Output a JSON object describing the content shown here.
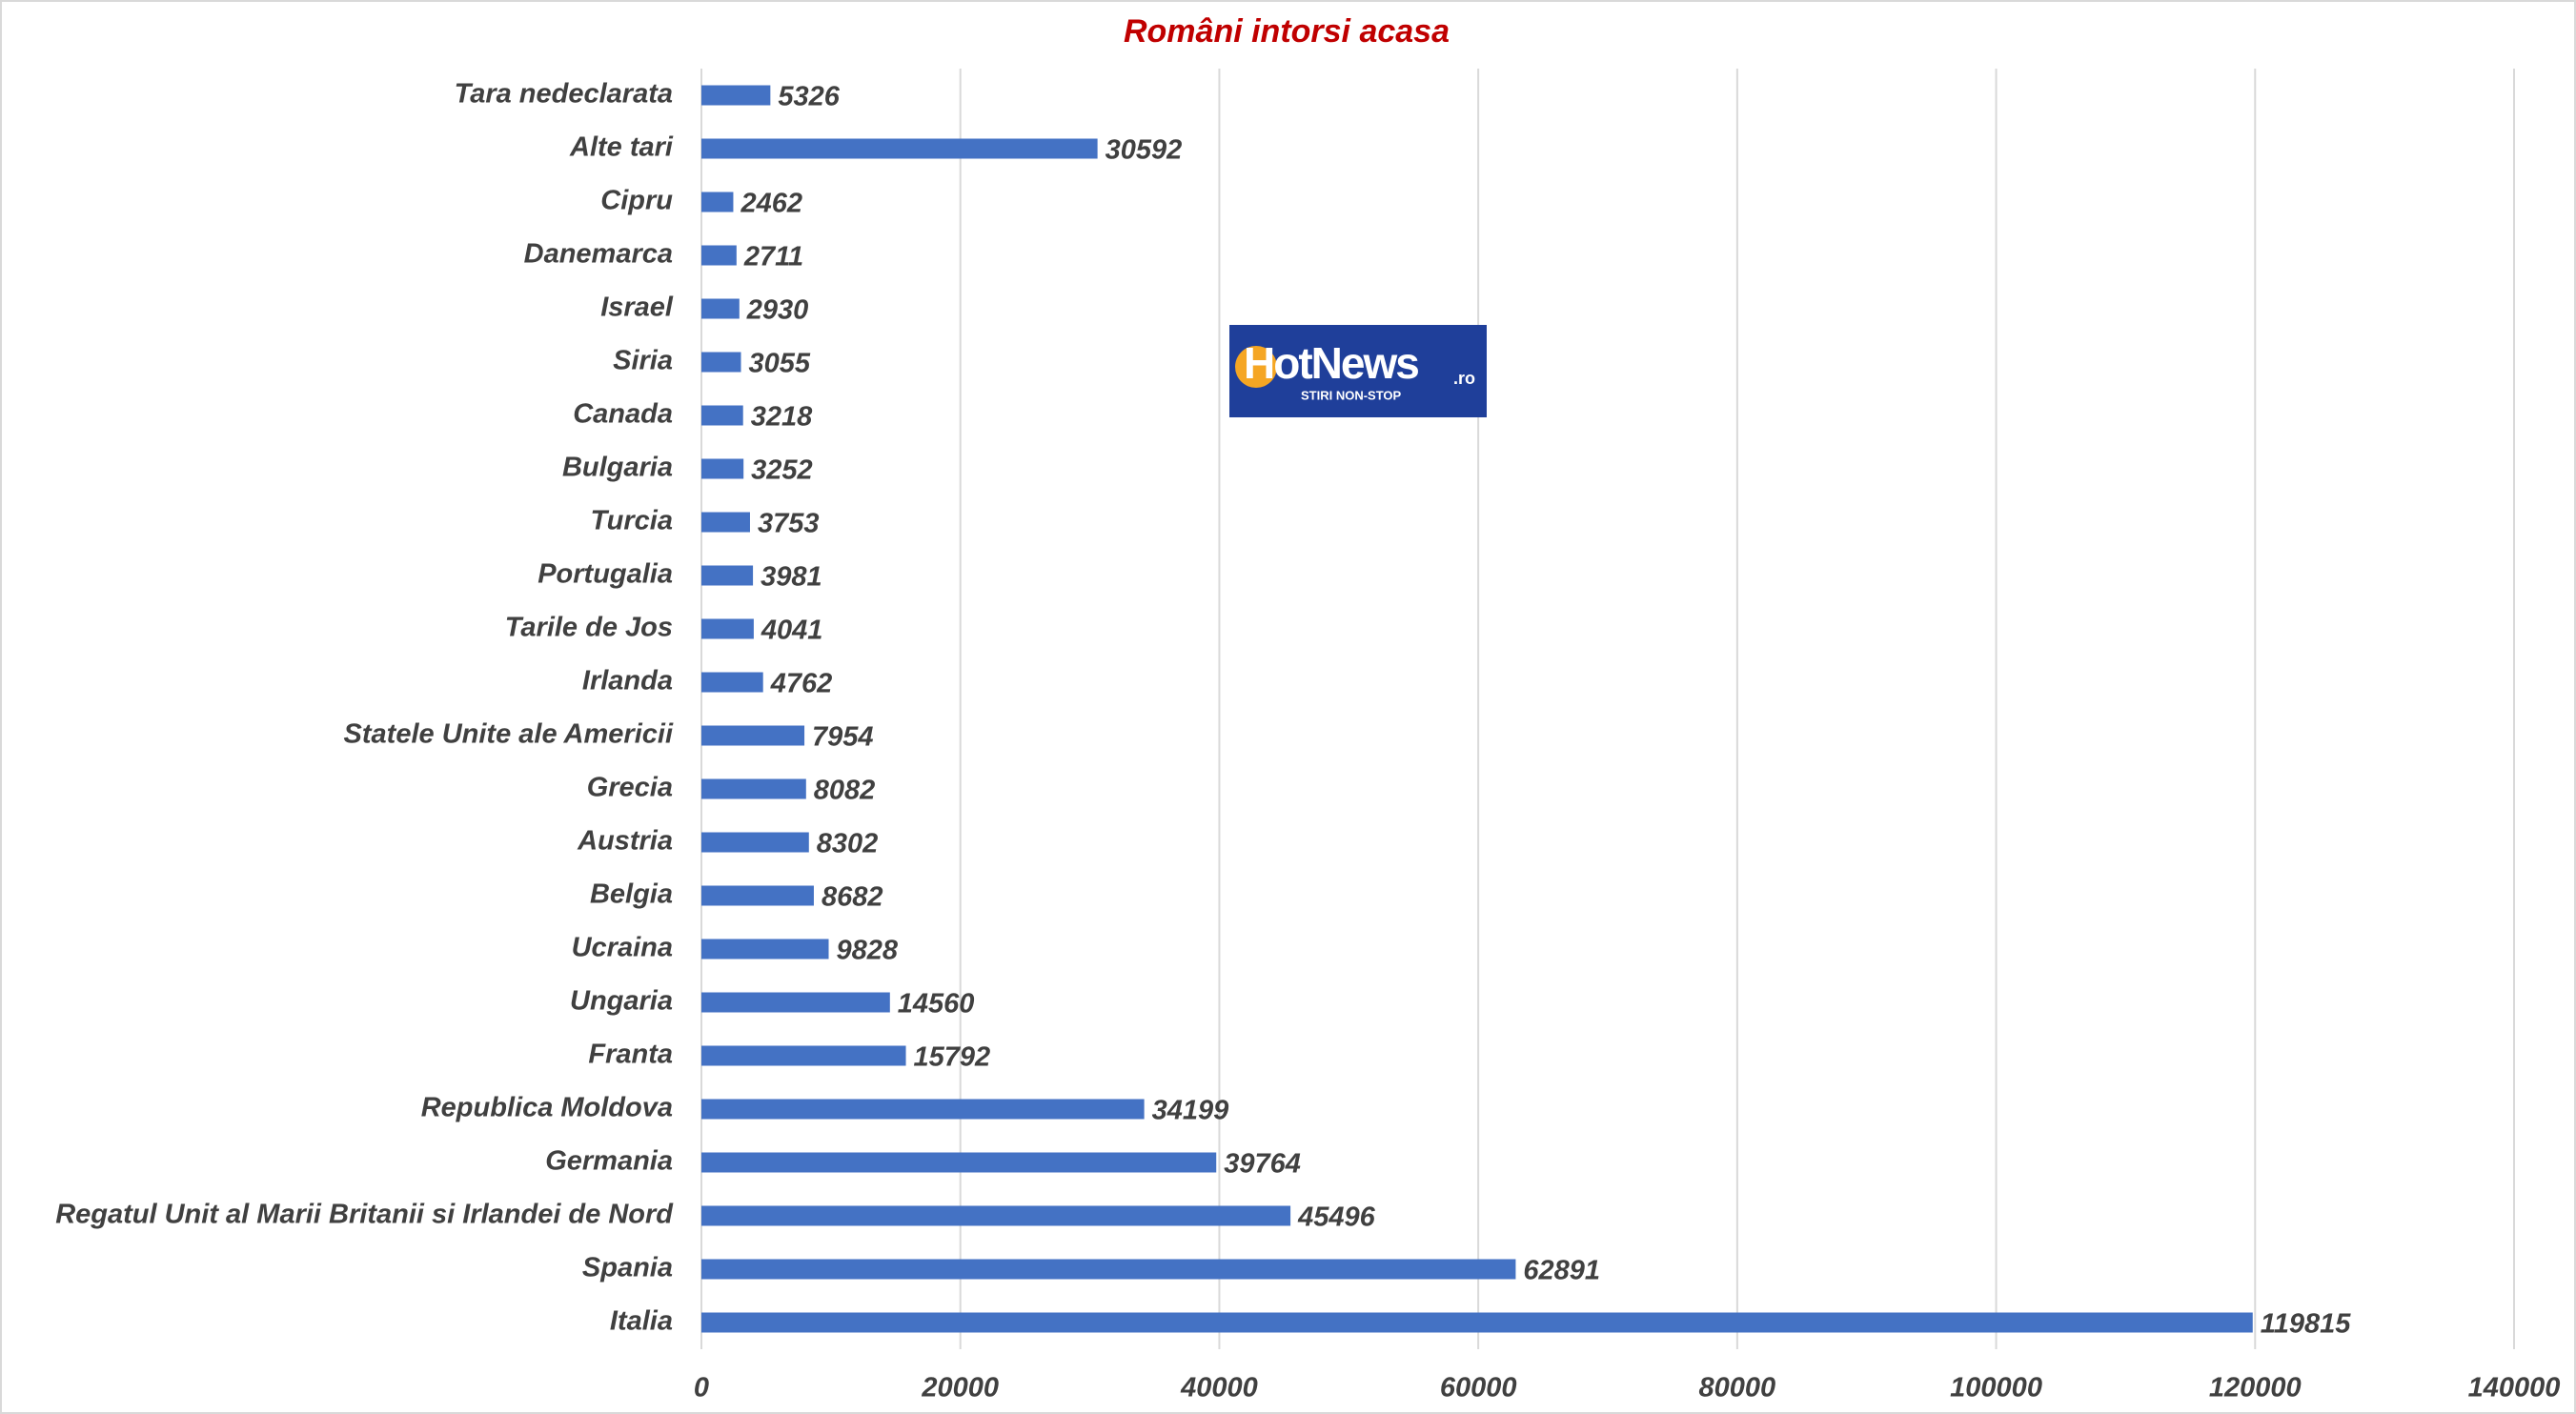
{
  "chart_data": {
    "type": "barh",
    "title": "Români intorsi acasa",
    "categories": [
      "Tara nedeclarata",
      "Alte tari",
      "Cipru",
      "Danemarca",
      "Israel",
      "Siria",
      "Canada",
      "Bulgaria",
      "Turcia",
      "Portugalia",
      "Tarile de Jos",
      "Irlanda",
      "Statele Unite ale Americii",
      "Grecia",
      "Austria",
      "Belgia",
      "Ucraina",
      "Ungaria",
      "Franta",
      "Republica Moldova",
      "Germania",
      "Regatul Unit al Marii Britanii si Irlandei de Nord",
      "Spania",
      "Italia"
    ],
    "values": [
      5326,
      30592,
      2462,
      2711,
      2930,
      3055,
      3218,
      3252,
      3753,
      3981,
      4041,
      4762,
      7954,
      8082,
      8302,
      8682,
      9828,
      14560,
      15792,
      34199,
      39764,
      45496,
      62891,
      119815
    ],
    "color": "#4472c4",
    "xlim": [
      0,
      140000
    ],
    "xticks": [
      0,
      20000,
      40000,
      60000,
      80000,
      100000,
      120000,
      140000
    ],
    "grid": true,
    "logo": {
      "name": "HotNews",
      "suffix": ".ro",
      "tagline": "STIRI NON-STOP"
    }
  }
}
